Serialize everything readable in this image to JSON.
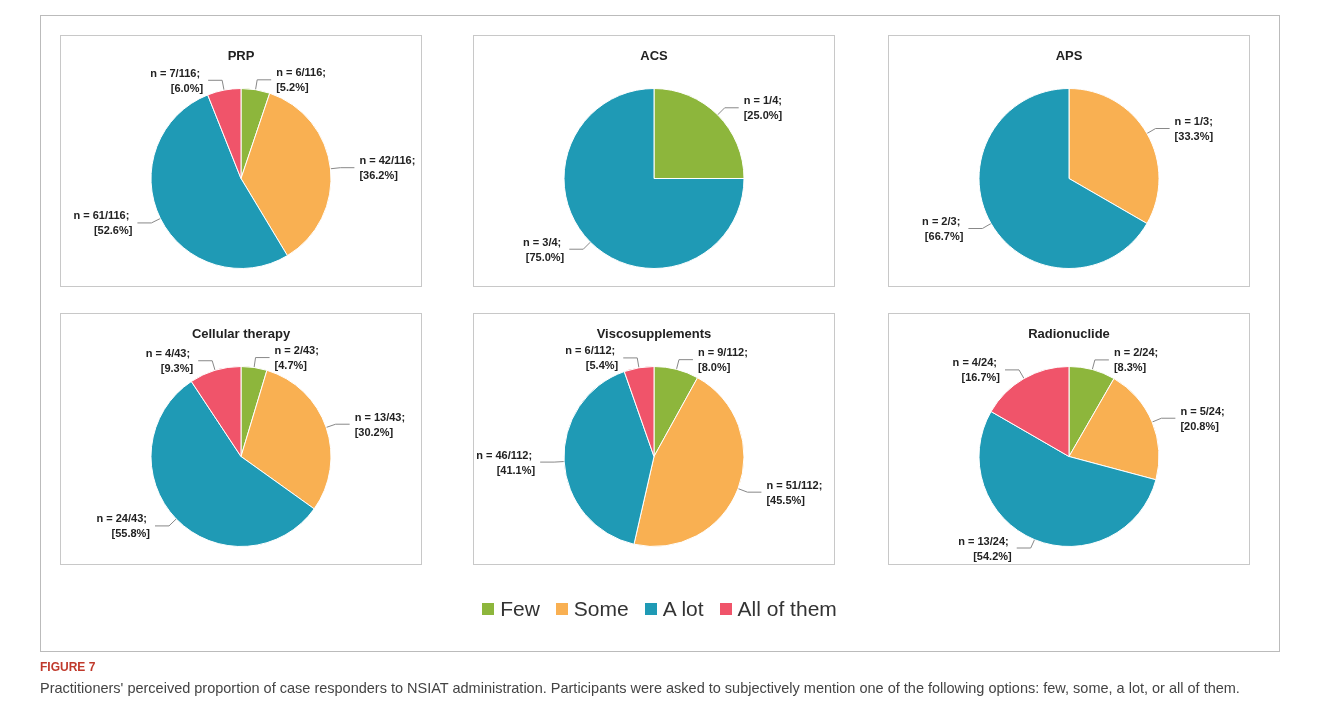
{
  "chart_data": [
    {
      "type": "pie",
      "title": "PRP",
      "categories": [
        "Few",
        "Some",
        "A lot",
        "All of them"
      ],
      "values": [
        6,
        42,
        61,
        7
      ],
      "colors": [
        "#8db63c",
        "#f9b052",
        "#1f9ab5",
        "#f0546a"
      ],
      "value_labels": [
        "n = 6/116; [5.2%]",
        "n = 42/116; [36.2%]",
        "n = 61/116; [52.6%]",
        "n = 7/116; [6.0%]"
      ],
      "legend": "bottom",
      "annotations": [
        "FIGURE 7",
        "Practitioners' perceived proportion of case responders to NSIAT administration. Participants were asked to subjectively mention one of the following options: few, some, a lot, or all of them."
      ]
    },
    {
      "type": "pie",
      "title": "ACS",
      "categories": [
        null,
        null
      ],
      "values": [
        1,
        3
      ],
      "colors": [
        "#8db63c",
        "#1f9ab5"
      ],
      "value_labels": [
        "n = 1/4; [25.0%]",
        "n = 3/4; [75.0%]"
      ]
    },
    {
      "type": "pie",
      "title": "APS",
      "categories": [
        null,
        null
      ],
      "values": [
        1,
        2
      ],
      "colors": [
        "#f9b052",
        "#1f9ab5"
      ],
      "value_labels": [
        "n = 1/3; [33.3%]",
        "n = 2/3; [66.7%]"
      ]
    },
    {
      "type": "pie",
      "title": "Cellular therapy",
      "categories": [
        null,
        null,
        null,
        null
      ],
      "values": [
        2,
        13,
        24,
        4
      ],
      "colors": [
        "#8db63c",
        "#f9b052",
        "#1f9ab5",
        "#f0546a"
      ],
      "value_labels": [
        "n = 2/43; [4.7%]",
        "n = 13/43; [30.2%]",
        "n = 24/43; [55.8%]",
        "n = 4/43; [9.3%]"
      ]
    },
    {
      "type": "pie",
      "title": "Viscosupplements",
      "categories": [
        null,
        null,
        null,
        null
      ],
      "values": [
        9,
        51,
        46,
        6
      ],
      "colors": [
        "#8db63c",
        "#f9b052",
        "#1f9ab5",
        "#f0546a"
      ],
      "value_labels": [
        "n = 9/112; [8.0%]",
        "n = 51/112; [45.5%]",
        "n = 46/112; [41.1%]",
        "n = 6/112; [5.4%]"
      ]
    },
    {
      "type": "pie",
      "title": "Radionuclide",
      "categories": [
        null,
        null,
        null,
        null
      ],
      "values": [
        2,
        5,
        13,
        4
      ],
      "colors": [
        "#8db63c",
        "#f9b052",
        "#1f9ab5",
        "#f0546a"
      ],
      "value_labels": [
        "n = 2/24; [8.3%]",
        "n = 5/24; [20.8%]",
        "n = 13/24; [54.2%]",
        "n = 4/24; [16.7%]"
      ]
    }
  ]
}
